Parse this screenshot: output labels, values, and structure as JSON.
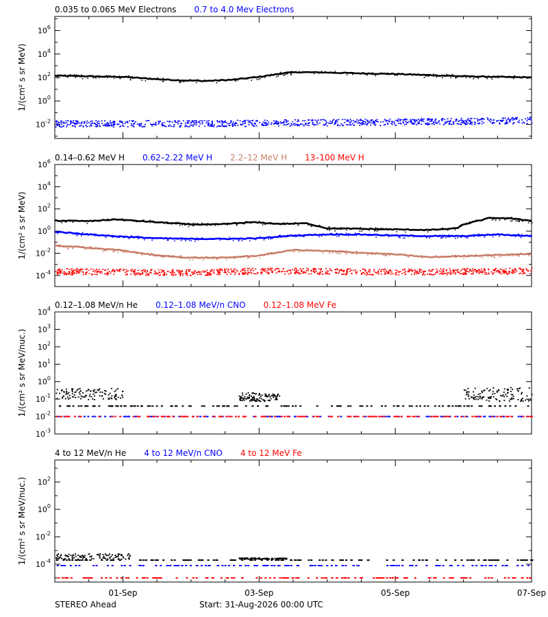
{
  "footer": {
    "spacecraft": "STEREO Ahead",
    "start": "Start: 31-Aug-2026 00:00 UTC"
  },
  "x_axis": {
    "range_days": [
      0,
      7
    ],
    "tick_labels": [
      "01-Sep",
      "03-Sep",
      "05-Sep",
      "07-Sep"
    ],
    "tick_positions_days": [
      1,
      3,
      5,
      7
    ],
    "minor_ticks_days": [
      0.5,
      1.5,
      2,
      2.5,
      3.5,
      4,
      4.5,
      5.5,
      6,
      6.5
    ]
  },
  "colors": {
    "black": "#000000",
    "blue": "#0000ff",
    "tan": "#c87d68",
    "red": "#ff0000"
  },
  "chart_data": [
    {
      "type": "scatter",
      "ylabel": "1/(cm² s sr MeV)",
      "yscale": "log",
      "ylim_log10": [
        -3.2,
        7.2
      ],
      "yticks": [
        {
          "exp": -2,
          "label": "10-2"
        },
        {
          "exp": 0,
          "label": "100"
        },
        {
          "exp": 2,
          "label": "102"
        },
        {
          "exp": 4,
          "label": "104"
        },
        {
          "exp": 6,
          "label": "106"
        }
      ],
      "legend": [
        {
          "name": "0.035 to 0.065 MeV Electrons",
          "color": "#000000"
        },
        {
          "name": "0.7 to 4.0 Mev Electrons",
          "color": "#0000ff"
        }
      ],
      "series": [
        {
          "name": "0.035 to 0.065 MeV Electrons",
          "color": "#000000",
          "style": "line",
          "x": [
            0,
            0.5,
            1.0,
            1.5,
            1.9,
            2.2,
            2.6,
            3.0,
            3.4,
            3.6,
            4.0,
            4.5,
            5.0,
            5.5,
            6.0,
            6.5,
            7.0
          ],
          "y_log10": [
            2.15,
            2.1,
            2.05,
            1.85,
            1.75,
            1.7,
            1.8,
            2.05,
            2.4,
            2.45,
            2.42,
            2.35,
            2.3,
            2.2,
            2.1,
            2.05,
            2.0
          ]
        },
        {
          "name": "0.7 to 4.0 Mev Electrons",
          "color": "#0000ff",
          "style": "band",
          "x": [
            0,
            1.0,
            2.0,
            3.0,
            4.0,
            5.0,
            6.0,
            7.0
          ],
          "y_log10": [
            -1.9,
            -1.9,
            -1.9,
            -1.85,
            -1.8,
            -1.75,
            -1.7,
            -1.6
          ]
        }
      ]
    },
    {
      "type": "scatter",
      "ylabel": "1/(cm² s sr MeV)",
      "yscale": "log",
      "ylim_log10": [
        -5,
        6
      ],
      "yticks": [
        {
          "exp": -4,
          "label": "10-4"
        },
        {
          "exp": -2,
          "label": "10-2"
        },
        {
          "exp": 0,
          "label": "100"
        },
        {
          "exp": 2,
          "label": "102"
        },
        {
          "exp": 4,
          "label": "104"
        },
        {
          "exp": 6,
          "label": "106"
        }
      ],
      "legend": [
        {
          "name": "0.14–0.62 MeV H",
          "color": "#000000"
        },
        {
          "name": "0.62–2.22 MeV H",
          "color": "#0000ff"
        },
        {
          "name": "2.2–12 MeV H",
          "color": "#c87d68"
        },
        {
          "name": "13–100 MeV H",
          "color": "#ff0000"
        }
      ],
      "series": [
        {
          "name": "0.14–0.62 MeV H",
          "color": "#000000",
          "style": "line",
          "x": [
            0,
            0.5,
            0.9,
            1.5,
            2.0,
            2.4,
            2.9,
            3.3,
            3.7,
            4.0,
            4.5,
            5.0,
            5.5,
            5.9,
            6.0,
            6.4,
            6.8,
            7.0
          ],
          "y_log10": [
            0.95,
            0.9,
            1.05,
            0.8,
            0.6,
            0.6,
            0.8,
            0.65,
            0.7,
            0.25,
            0.2,
            0.15,
            0.1,
            0.25,
            0.6,
            1.2,
            1.1,
            0.9
          ]
        },
        {
          "name": "0.62–2.22 MeV H",
          "color": "#0000ff",
          "style": "line",
          "x": [
            0,
            0.5,
            1.0,
            1.5,
            2.0,
            2.5,
            3.0,
            3.5,
            4.0,
            4.5,
            5.0,
            5.5,
            6.0,
            6.5,
            7.0
          ],
          "y_log10": [
            -0.05,
            -0.3,
            -0.5,
            -0.65,
            -0.7,
            -0.7,
            -0.65,
            -0.4,
            -0.3,
            -0.3,
            -0.4,
            -0.45,
            -0.45,
            -0.3,
            -0.45
          ]
        },
        {
          "name": "2.2–12 MeV H",
          "color": "#c87d68",
          "style": "line",
          "x": [
            0,
            0.5,
            1.0,
            1.5,
            2.0,
            2.5,
            3.0,
            3.5,
            4.0,
            4.5,
            5.0,
            5.5,
            6.0,
            6.5,
            7.0
          ],
          "y_log10": [
            -1.3,
            -1.5,
            -1.75,
            -2.2,
            -2.4,
            -2.4,
            -2.2,
            -1.7,
            -1.8,
            -1.95,
            -2.1,
            -2.35,
            -2.25,
            -2.15,
            -2.05
          ]
        },
        {
          "name": "13–100 MeV H",
          "color": "#ff0000",
          "style": "band",
          "x": [
            0,
            1.0,
            2.0,
            3.0,
            4.0,
            5.0,
            6.0,
            7.0
          ],
          "y_log10": [
            -3.6,
            -3.65,
            -3.7,
            -3.55,
            -3.6,
            -3.65,
            -3.6,
            -3.55
          ]
        }
      ]
    },
    {
      "type": "scatter",
      "ylabel": "1/(cm² s sr MeV/nuc.)",
      "yscale": "log",
      "ylim_log10": [
        -3,
        4
      ],
      "yticks": [
        {
          "exp": -3,
          "label": "10-3"
        },
        {
          "exp": -2,
          "label": "10-2"
        },
        {
          "exp": -1,
          "label": "10-1"
        },
        {
          "exp": 0,
          "label": "100"
        },
        {
          "exp": 1,
          "label": "101"
        },
        {
          "exp": 2,
          "label": "102"
        },
        {
          "exp": 3,
          "label": "103"
        },
        {
          "exp": 4,
          "label": "104"
        }
      ],
      "legend": [
        {
          "name": "0.12–1.08 MeV/n He",
          "color": "#000000"
        },
        {
          "name": "0.12–1.08 MeV/n CNO",
          "color": "#0000ff"
        },
        {
          "name": "0.12–1.08 MeV Fe",
          "color": "#ff0000"
        }
      ],
      "series": [
        {
          "name": "0.12–1.08 MeV/n He",
          "color": "#000000",
          "style": "floor",
          "floor_log10": -1.4,
          "bursts": [
            [
              0,
              1.0,
              -1.0,
              -0.35
            ],
            [
              2.7,
              3.3,
              -1.1,
              -0.6
            ],
            [
              6.0,
              7.0,
              -1.1,
              -0.3
            ]
          ]
        },
        {
          "name": "0.12–1.08 MeV/n CNO",
          "color": "#0000ff",
          "style": "floor",
          "floor_log10": -2.0,
          "bursts": []
        },
        {
          "name": "0.12–1.08 MeV Fe",
          "color": "#ff0000",
          "style": "floor",
          "floor_log10": -2.0,
          "bursts": []
        }
      ]
    },
    {
      "type": "scatter",
      "ylabel": "1/(cm² s sr MeV/nuc.)",
      "yscale": "log",
      "ylim_log10": [
        -5.3,
        3.6
      ],
      "yticks": [
        {
          "exp": -4,
          "label": "10-4"
        },
        {
          "exp": -2,
          "label": "10-2"
        },
        {
          "exp": 0,
          "label": "100"
        },
        {
          "exp": 2,
          "label": "102"
        }
      ],
      "legend": [
        {
          "name": "4 to 12 MeV/n He",
          "color": "#000000"
        },
        {
          "name": "4 to 12 MeV/n CNO",
          "color": "#0000ff"
        },
        {
          "name": "4 to 12 MeV Fe",
          "color": "#ff0000"
        }
      ],
      "series": [
        {
          "name": "4 to 12 MeV/n He",
          "color": "#000000",
          "style": "floor",
          "floor_log10": -3.7,
          "bursts": [
            [
              0,
              1.1,
              -3.6,
              -3.2
            ],
            [
              2.7,
              3.4,
              -3.6,
              -3.5
            ]
          ]
        },
        {
          "name": "4 to 12 MeV/n CNO",
          "color": "#0000ff",
          "style": "floor",
          "floor_log10": -4.1,
          "bursts": []
        },
        {
          "name": "4 to 12 MeV Fe",
          "color": "#ff0000",
          "style": "floor",
          "floor_log10": -5.0,
          "bursts": []
        }
      ]
    }
  ]
}
